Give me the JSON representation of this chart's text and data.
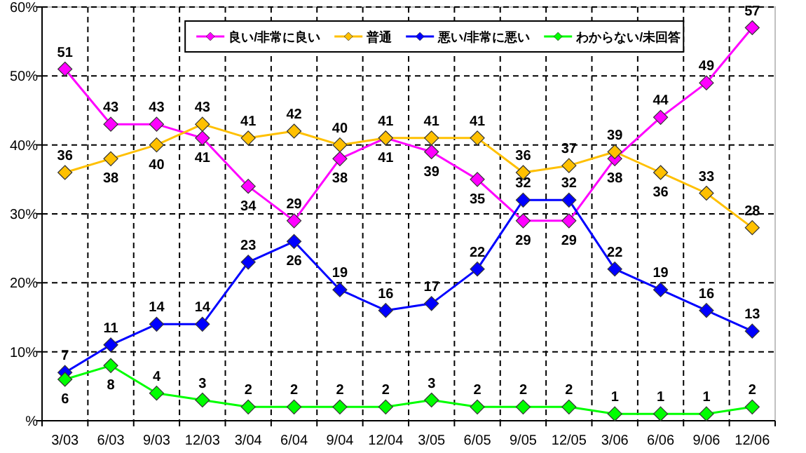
{
  "chart_data": {
    "type": "line",
    "categories": [
      "3/03",
      "6/03",
      "9/03",
      "12/03",
      "3/04",
      "6/04",
      "9/04",
      "12/04",
      "3/05",
      "6/05",
      "9/05",
      "12/05",
      "3/06",
      "6/06",
      "9/06",
      "12/06"
    ],
    "series": [
      {
        "name": "良い/非常に良い",
        "color": "#ff00ff",
        "values": [
          51,
          43,
          43,
          41,
          34,
          29,
          38,
          41,
          39,
          35,
          29,
          29,
          38,
          44,
          49,
          57
        ]
      },
      {
        "name": "普通",
        "color": "#ffc000",
        "values": [
          36,
          38,
          40,
          43,
          41,
          42,
          40,
          41,
          41,
          41,
          36,
          37,
          39,
          36,
          33,
          28
        ]
      },
      {
        "name": "悪い/非常に悪い",
        "color": "#0000ff",
        "values": [
          7,
          11,
          14,
          14,
          23,
          26,
          19,
          16,
          17,
          22,
          32,
          32,
          22,
          19,
          16,
          13
        ]
      },
      {
        "name": "わからない/未回答",
        "color": "#00ff00",
        "values": [
          6,
          8,
          4,
          3,
          2,
          2,
          2,
          2,
          3,
          2,
          2,
          2,
          1,
          1,
          1,
          2
        ]
      }
    ],
    "ylim": [
      0,
      60
    ],
    "yticks": [
      {
        "value": 0,
        "label": "%"
      },
      {
        "value": 10,
        "label": "10%"
      },
      {
        "value": 20,
        "label": "20%"
      },
      {
        "value": 30,
        "label": "30%"
      },
      {
        "value": 40,
        "label": "40%"
      },
      {
        "value": 50,
        "label": "50%"
      },
      {
        "value": 60,
        "label": "60%"
      }
    ],
    "grid": true,
    "legend": "top right",
    "marker": "diamond",
    "line_style": "solid",
    "data_labels": true
  }
}
